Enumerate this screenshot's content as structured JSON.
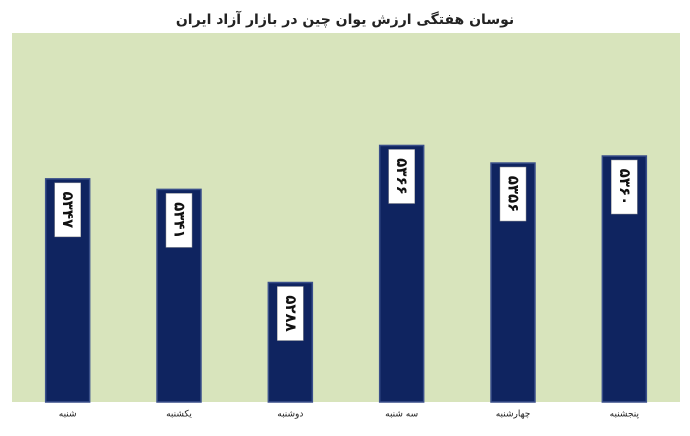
{
  "chart_data": {
    "type": "bar",
    "title": "نوسان هفتگی ارزش  یوان چین در بازار آزاد ایران",
    "categories": [
      "شنبه",
      "یکشنبه",
      "دوشنبه",
      "سه شنبه",
      "چهارشنبه",
      "پنجشنبه"
    ],
    "values": [
      5347,
      5341,
      5288,
      5366,
      5356,
      5360
    ],
    "value_labels": [
      "۵۳۴۷",
      "۵۳۴۱",
      "۵۲۸۸",
      "۵۳۶۶",
      "۵۳۵۶",
      "۵۳۶۰"
    ],
    "color": "#0f2460",
    "ylim": [
      5220,
      5430
    ]
  }
}
